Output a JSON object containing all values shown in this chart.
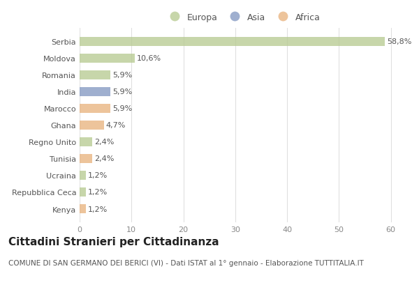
{
  "categories": [
    "Serbia",
    "Moldova",
    "Romania",
    "India",
    "Marocco",
    "Ghana",
    "Regno Unito",
    "Tunisia",
    "Ucraina",
    "Repubblica Ceca",
    "Kenya"
  ],
  "values": [
    58.8,
    10.6,
    5.9,
    5.9,
    5.9,
    4.7,
    2.4,
    2.4,
    1.2,
    1.2,
    1.2
  ],
  "labels": [
    "58,8%",
    "10,6%",
    "5,9%",
    "5,9%",
    "5,9%",
    "4,7%",
    "2,4%",
    "2,4%",
    "1,2%",
    "1,2%",
    "1,2%"
  ],
  "colors": [
    "#b5c98e",
    "#b5c98e",
    "#b5c98e",
    "#7f95c0",
    "#e8b07a",
    "#e8b07a",
    "#b5c98e",
    "#e8b07a",
    "#b5c98e",
    "#b5c98e",
    "#e8b07a"
  ],
  "legend_labels": [
    "Europa",
    "Asia",
    "Africa"
  ],
  "legend_colors": [
    "#b5c98e",
    "#7f95c0",
    "#e8b07a"
  ],
  "xlim": [
    0,
    63
  ],
  "xticks": [
    0,
    10,
    20,
    30,
    40,
    50,
    60
  ],
  "title": "Cittadini Stranieri per Cittadinanza",
  "subtitle": "COMUNE DI SAN GERMANO DEI BERICI (VI) - Dati ISTAT al 1° gennaio - Elaborazione TUTTITALIA.IT",
  "bg_color": "#ffffff",
  "grid_color": "#e0e0e0",
  "bar_height": 0.55,
  "title_fontsize": 11,
  "subtitle_fontsize": 7.5,
  "label_fontsize": 8,
  "tick_fontsize": 8,
  "legend_fontsize": 9
}
